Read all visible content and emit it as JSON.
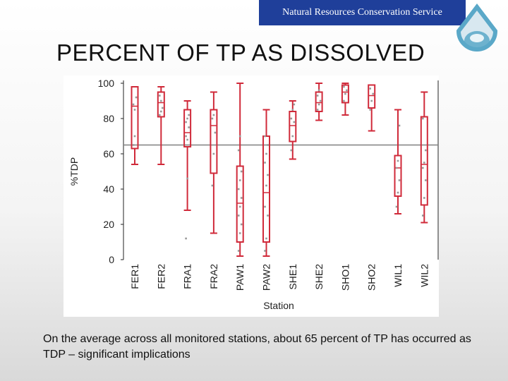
{
  "header": {
    "organization": "Natural Resources Conservation Service"
  },
  "colors": {
    "banner": "#1f3f9a",
    "box": "#d02a3a",
    "reference_line": "#808080",
    "points": "#9a9a9a"
  },
  "slide": {
    "title": "PERCENT OF TP AS DISSOLVED",
    "caption": "On the average across all monitored stations, about 65 percent of TP has occurred as TDP – significant implications"
  },
  "chart_data": {
    "type": "box",
    "title": "",
    "xlabel": "Station",
    "ylabel": "%TDP",
    "ylim": [
      0,
      100
    ],
    "yticks": [
      0,
      20,
      40,
      60,
      80,
      100
    ],
    "reference_line": 65,
    "categories": [
      "FER1",
      "FER2",
      "FRA1",
      "FRA2",
      "PAW1",
      "PAW2",
      "SHE1",
      "SHE2",
      "SHO1",
      "SHO2",
      "WIL1",
      "WIL2"
    ],
    "boxes": [
      {
        "station": "FER1",
        "whisker_low": 54,
        "q1": 63,
        "median": 87,
        "q3": 98,
        "whisker_high": 98
      },
      {
        "station": "FER2",
        "whisker_low": 54,
        "q1": 81,
        "median": 89,
        "q3": 95,
        "whisker_high": 98
      },
      {
        "station": "FRA1",
        "whisker_low": 28,
        "q1": 64,
        "median": 72,
        "q3": 85,
        "whisker_high": 90
      },
      {
        "station": "FRA2",
        "whisker_low": 15,
        "q1": 49,
        "median": 76,
        "q3": 85,
        "whisker_high": 95
      },
      {
        "station": "PAW1",
        "whisker_low": 2,
        "q1": 10,
        "median": 32,
        "q3": 53,
        "whisker_high": 100
      },
      {
        "station": "PAW2",
        "whisker_low": 2,
        "q1": 10,
        "median": 38,
        "q3": 70,
        "whisker_high": 85
      },
      {
        "station": "SHE1",
        "whisker_low": 57,
        "q1": 67,
        "median": 76,
        "q3": 84,
        "whisker_high": 90
      },
      {
        "station": "SHE2",
        "whisker_low": 79,
        "q1": 84,
        "median": 89,
        "q3": 95,
        "whisker_high": 100
      },
      {
        "station": "SHO1",
        "whisker_low": 82,
        "q1": 89,
        "median": 95,
        "q3": 99,
        "whisker_high": 100
      },
      {
        "station": "SHO2",
        "whisker_low": 73,
        "q1": 86,
        "median": 93,
        "q3": 99,
        "whisker_high": 99
      },
      {
        "station": "WIL1",
        "whisker_low": 26,
        "q1": 36,
        "median": 52,
        "q3": 59,
        "whisker_high": 85
      },
      {
        "station": "WIL2",
        "whisker_low": 21,
        "q1": 31,
        "median": 54,
        "q3": 81,
        "whisker_high": 95
      }
    ],
    "points": [
      {
        "station": "FER1",
        "y": [
          88,
          85,
          92,
          65,
          70
        ]
      },
      {
        "station": "FER2",
        "y": [
          93,
          90,
          86,
          82,
          84
        ]
      },
      {
        "station": "FRA1",
        "y": [
          12,
          46,
          75,
          70,
          80,
          82,
          78,
          68
        ]
      },
      {
        "station": "FRA2",
        "y": [
          42,
          60,
          72,
          80,
          82
        ]
      },
      {
        "station": "PAW1",
        "y": [
          5,
          15,
          20,
          25,
          30,
          35,
          40,
          45,
          50,
          62,
          70
        ]
      },
      {
        "station": "PAW2",
        "y": [
          5,
          12,
          25,
          30,
          42,
          48,
          55,
          60,
          65,
          70
        ]
      },
      {
        "station": "SHE1",
        "y": [
          62,
          70,
          78,
          80,
          85,
          88
        ]
      },
      {
        "station": "SHE2",
        "y": [
          85,
          88,
          90,
          93,
          96
        ]
      },
      {
        "station": "SHO1",
        "y": [
          90,
          94,
          96,
          98
        ]
      },
      {
        "station": "SHO2",
        "y": [
          85,
          90,
          94,
          97
        ]
      },
      {
        "station": "WIL1",
        "y": [
          30,
          38,
          45,
          52,
          56,
          76
        ]
      },
      {
        "station": "WIL2",
        "y": [
          25,
          35,
          45,
          52,
          55,
          62,
          80
        ]
      }
    ],
    "grid": false,
    "legend": "none"
  }
}
